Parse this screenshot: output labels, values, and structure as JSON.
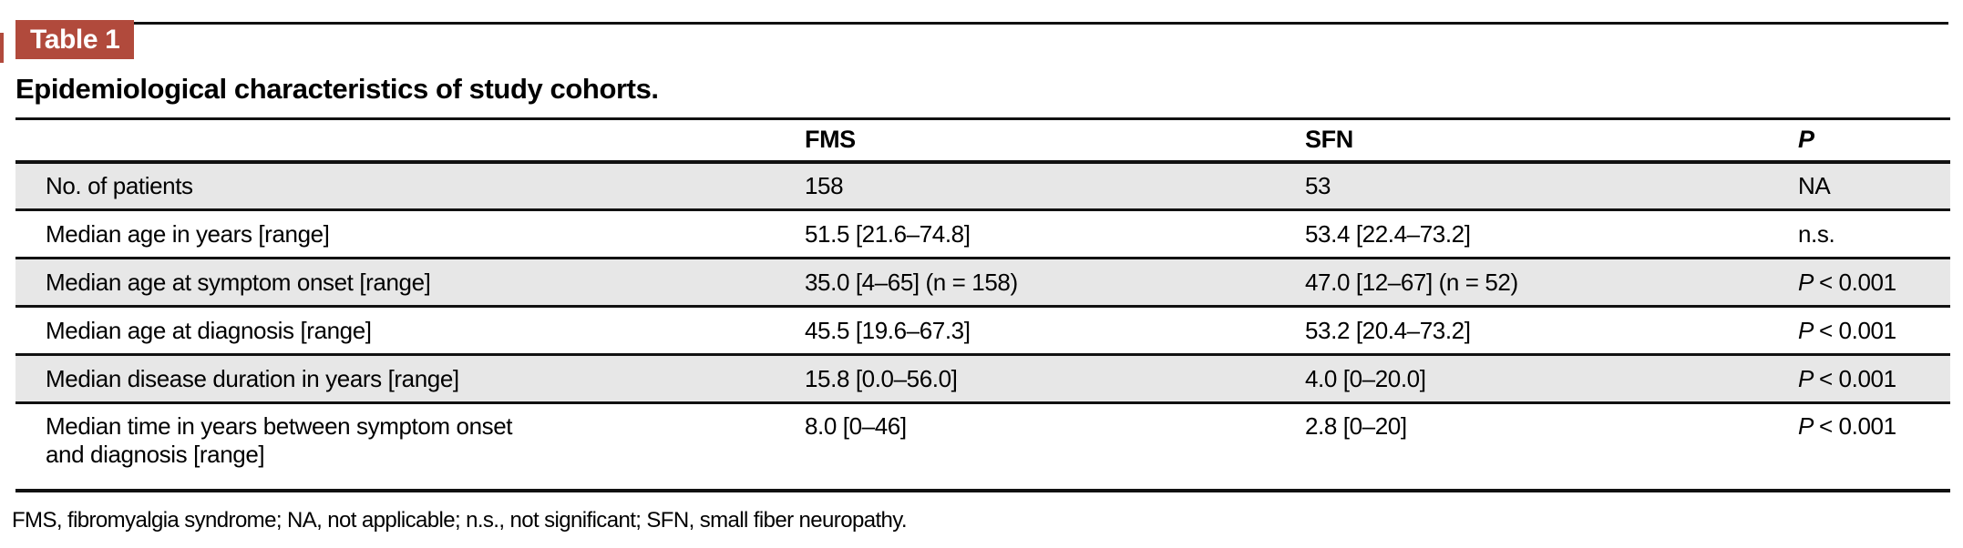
{
  "accent_color": "#b14a3c",
  "stripe_color": "#e7e7e7",
  "label_badge": "Table 1",
  "title": "Epidemiological characteristics of study cohorts.",
  "table": {
    "columns": [
      "",
      "FMS",
      "SFN",
      "P"
    ],
    "rows": [
      {
        "label": "No. of patients",
        "fms": "158",
        "sfn": "53",
        "p_italic": "",
        "p_text": "NA"
      },
      {
        "label": "Median age in years [range]",
        "fms": "51.5 [21.6–74.8]",
        "sfn": "53.4 [22.4–73.2]",
        "p_italic": "",
        "p_text": "n.s."
      },
      {
        "label": "Median age at symptom onset [range]",
        "fms": "35.0 [4–65] (n = 158)",
        "sfn": "47.0 [12–67] (n = 52)",
        "p_italic": "P",
        "p_text": "< 0.001"
      },
      {
        "label": "Median age at diagnosis [range]",
        "fms": "45.5 [19.6–67.3]",
        "sfn": "53.2 [20.4–73.2]",
        "p_italic": "P",
        "p_text": "< 0.001"
      },
      {
        "label": "Median disease duration in years [range]",
        "fms": "15.8 [0.0–56.0]",
        "sfn": "4.0 [0–20.0]",
        "p_italic": "P",
        "p_text": "< 0.001"
      },
      {
        "label": "Median time in years between symptom onset\nand diagnosis [range]",
        "fms": "8.0 [0–46]",
        "sfn": "2.8 [0–20]",
        "p_italic": "P",
        "p_text": "< 0.001"
      }
    ]
  },
  "footnote": "FMS, fibromyalgia syndrome; NA, not applicable; n.s., not significant; SFN, small fiber neuropathy."
}
